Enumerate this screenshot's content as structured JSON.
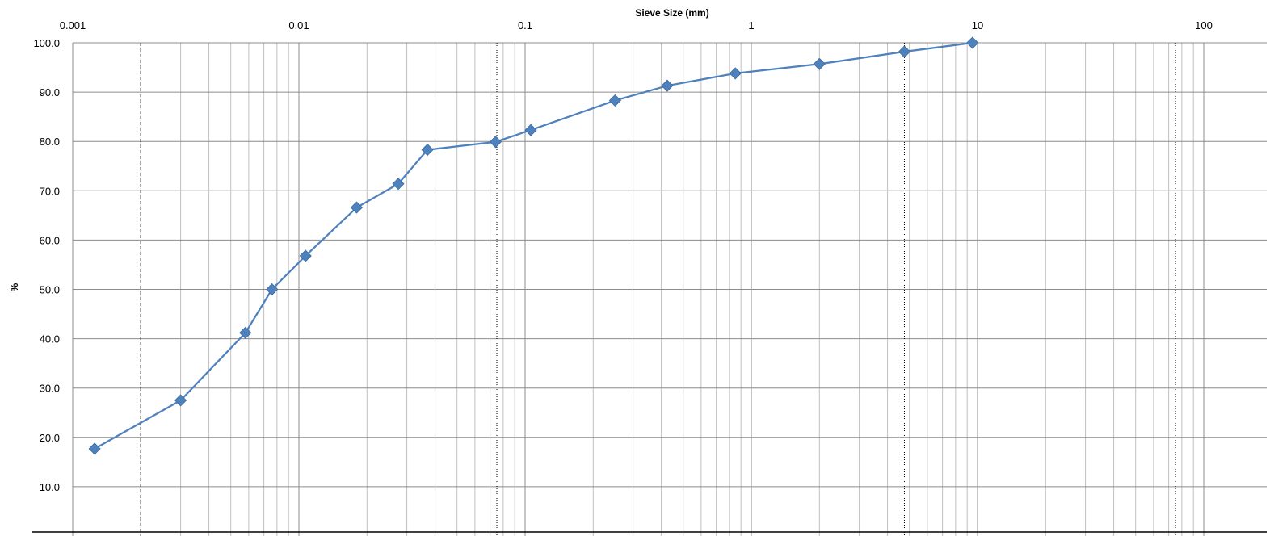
{
  "chart_data": {
    "type": "scatter",
    "xlabel": "Sieve Size (mm)",
    "ylabel": "%",
    "x_scale": "log",
    "xlim": [
      0.001,
      200
    ],
    "ylim": [
      0,
      100
    ],
    "x_tick_values": [
      0.001,
      0.01,
      0.1,
      1,
      10,
      100
    ],
    "x_tick_labels": [
      "0.001",
      "0.01",
      "0.1",
      "1",
      "10",
      "100"
    ],
    "y_tick_values": [
      10,
      20,
      30,
      40,
      50,
      60,
      70,
      80,
      90,
      100
    ],
    "y_tick_labels": [
      "10.0",
      "20.0",
      "30.0",
      "40.0",
      "50.0",
      "60.0",
      "70.0",
      "80.0",
      "90.0",
      "100.0"
    ],
    "x_axis_position": "top",
    "grid": true,
    "grid_minor_x": true,
    "reference_lines_x": [
      {
        "x": 0.002,
        "style": "dashed"
      },
      {
        "x": 0.075,
        "style": "dotted"
      },
      {
        "x": 4.75,
        "style": "dotted"
      },
      {
        "x": 75,
        "style": "dotted"
      }
    ],
    "series": [
      {
        "marker": "diamond",
        "line": true,
        "color": "#4f81bd",
        "x": [
          0.00125,
          0.003,
          0.0058,
          0.0076,
          0.0107,
          0.018,
          0.0275,
          0.037,
          0.074,
          0.106,
          0.25,
          0.425,
          0.85,
          2.0,
          4.75,
          9.5
        ],
        "y": [
          17.7,
          27.5,
          41.2,
          50.0,
          56.8,
          66.6,
          71.4,
          78.3,
          79.9,
          82.3,
          88.3,
          91.3,
          93.8,
          95.7,
          98.2,
          100.0
        ]
      }
    ],
    "colors": {
      "series": "#4f81bd",
      "grid": "#bfbfbf",
      "major_grid": "#8c8c8c",
      "reference_line": "#000000"
    }
  }
}
